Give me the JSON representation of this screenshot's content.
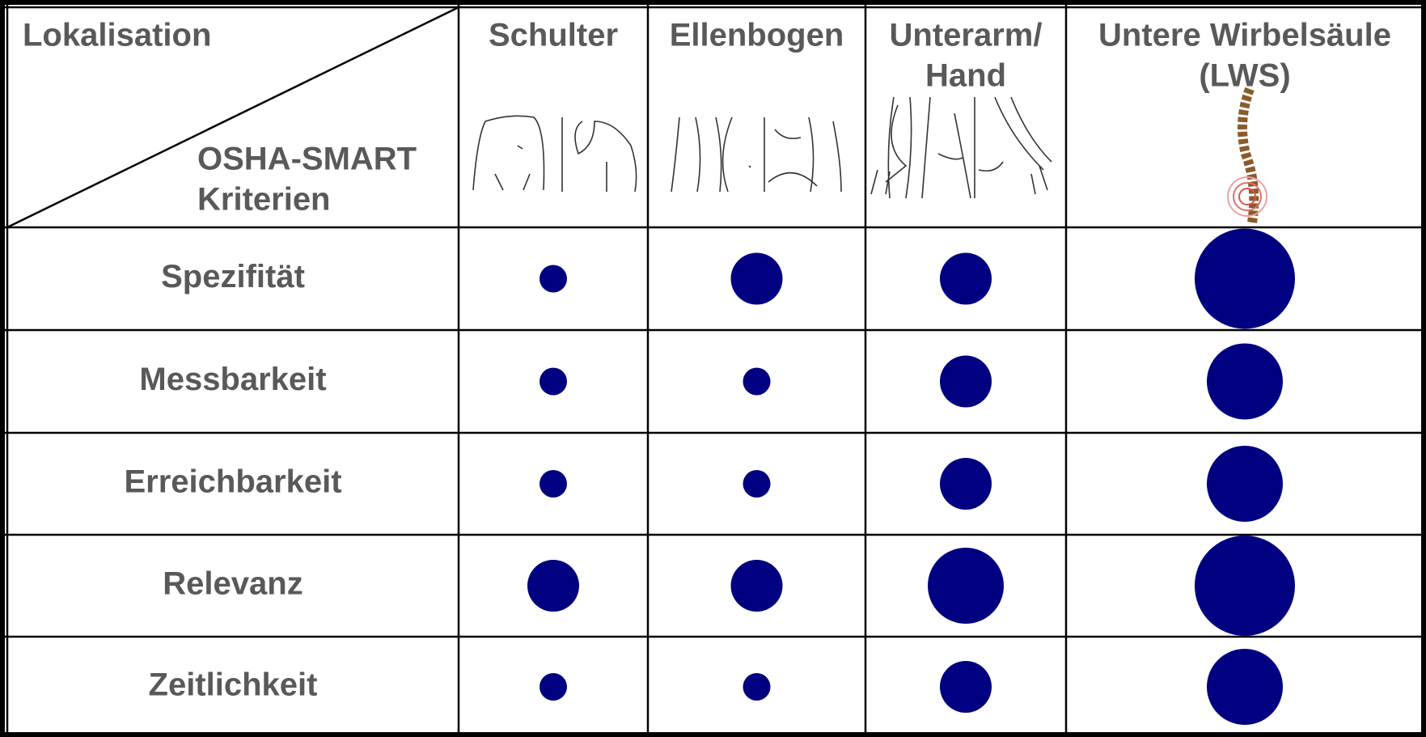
{
  "table": {
    "corner": {
      "top": "Lokalisation",
      "bottom": [
        "OSHA-SMART",
        "Kriterien"
      ]
    },
    "columns": [
      [
        "Schulter"
      ],
      [
        "Ellenbogen"
      ],
      [
        "Unterarm/",
        "Hand"
      ],
      [
        "Untere Wirbelsäule",
        "(LWS)"
      ]
    ],
    "rows": [
      {
        "label": "Spezifität",
        "levels": [
          1,
          2,
          2,
          4
        ]
      },
      {
        "label": "Messbarkeit",
        "levels": [
          1,
          1,
          2,
          3
        ]
      },
      {
        "label": "Erreichbarkeit",
        "levels": [
          1,
          1,
          2,
          3
        ]
      },
      {
        "label": "Relevanz",
        "levels": [
          2,
          2,
          3,
          4
        ]
      },
      {
        "label": "Zeitlichkeit",
        "levels": [
          1,
          1,
          2,
          3
        ]
      }
    ],
    "color": "#000080"
  }
}
